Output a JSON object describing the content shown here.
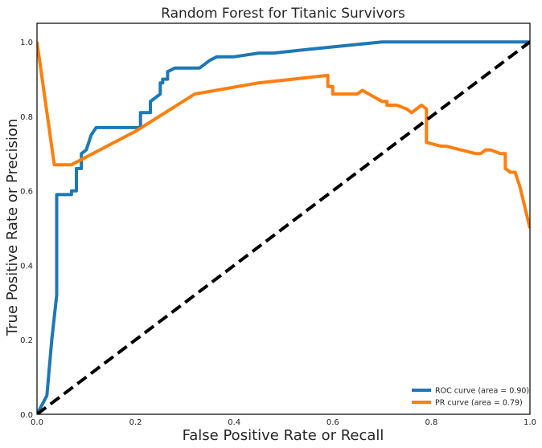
{
  "chart_data": {
    "type": "line",
    "title": "Random Forest for Titanic Survivors",
    "xlabel": "False Positive Rate or Recall",
    "ylabel": "True Positive Rate or Precision",
    "xlim": [
      0,
      1
    ],
    "ylim": [
      0,
      1.05
    ],
    "xticks": [
      "0.0",
      "0.2",
      "0.4",
      "0.6",
      "0.8",
      "1.0"
    ],
    "yticks": [
      "0.0",
      "0.2",
      "0.4",
      "0.6",
      "0.8",
      "1.0"
    ],
    "grid": false,
    "legend_position": "lower-right",
    "series": [
      {
        "name": "ROC curve (area = 0.90)",
        "color": "#1f77b4",
        "x": [
          0.0,
          0.02,
          0.03,
          0.04,
          0.04,
          0.07,
          0.07,
          0.08,
          0.08,
          0.09,
          0.09,
          0.1,
          0.1,
          0.11,
          0.11,
          0.12,
          0.12,
          0.21,
          0.21,
          0.23,
          0.23,
          0.25,
          0.25,
          0.255,
          0.255,
          0.265,
          0.265,
          0.28,
          0.28,
          0.33,
          0.35,
          0.35,
          0.365,
          0.365,
          0.4,
          0.45,
          0.48,
          0.55,
          0.7,
          0.78,
          0.9,
          1.0
        ],
        "y": [
          0.0,
          0.05,
          0.2,
          0.32,
          0.59,
          0.59,
          0.6,
          0.6,
          0.66,
          0.66,
          0.7,
          0.71,
          0.71,
          0.75,
          0.75,
          0.77,
          0.77,
          0.77,
          0.81,
          0.81,
          0.84,
          0.86,
          0.89,
          0.89,
          0.9,
          0.9,
          0.92,
          0.93,
          0.93,
          0.93,
          0.95,
          0.95,
          0.96,
          0.96,
          0.96,
          0.97,
          0.97,
          0.98,
          1.0,
          1.0,
          1.0,
          1.0
        ]
      },
      {
        "name": "PR curve (area = 0.79)",
        "color": "#ff7f0e",
        "x": [
          0.0,
          0.035,
          0.07,
          0.2,
          0.32,
          0.45,
          0.59,
          0.59,
          0.6,
          0.6,
          0.65,
          0.66,
          0.66,
          0.7,
          0.71,
          0.71,
          0.73,
          0.75,
          0.76,
          0.78,
          0.79,
          0.79,
          0.82,
          0.83,
          0.86,
          0.89,
          0.9,
          0.91,
          0.92,
          0.94,
          0.95,
          0.95,
          0.96,
          0.97,
          0.98,
          1.0
        ],
        "y": [
          1.0,
          0.67,
          0.67,
          0.76,
          0.86,
          0.89,
          0.91,
          0.88,
          0.88,
          0.86,
          0.86,
          0.87,
          0.87,
          0.84,
          0.84,
          0.83,
          0.83,
          0.82,
          0.81,
          0.83,
          0.82,
          0.73,
          0.72,
          0.72,
          0.71,
          0.7,
          0.7,
          0.71,
          0.71,
          0.7,
          0.7,
          0.66,
          0.65,
          0.65,
          0.61,
          0.5
        ]
      },
      {
        "name": "",
        "color": "#000000",
        "dashed": true,
        "x": [
          0,
          1
        ],
        "y": [
          0,
          1
        ]
      }
    ]
  }
}
